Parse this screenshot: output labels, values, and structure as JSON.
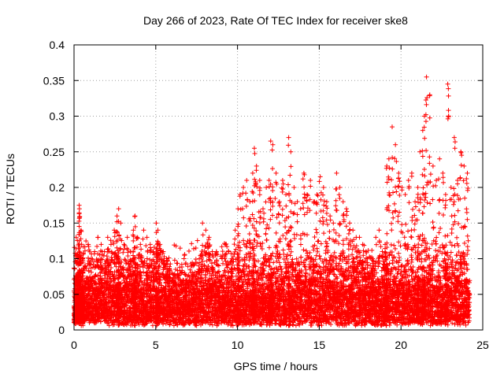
{
  "chart_data": {
    "type": "scatter",
    "title": "Day 266 of 2023, Rate Of TEC Index for receiver ske8",
    "xlabel": "GPS time / hours",
    "ylabel": "ROTI / TECUs",
    "xlim": [
      0,
      25
    ],
    "ylim": [
      0,
      0.4
    ],
    "xticks": [
      0,
      5,
      10,
      15,
      20,
      25
    ],
    "xtick_labels": [
      "0",
      "5",
      "10",
      "15",
      "20",
      "25"
    ],
    "yticks": [
      0,
      0.05,
      0.1,
      0.15,
      0.2,
      0.25,
      0.3,
      0.35,
      0.4
    ],
    "ytick_labels": [
      "0",
      "0.05",
      "0.1",
      "0.15",
      "0.2",
      "0.25",
      "0.3",
      "0.35",
      "0.4"
    ],
    "grid": true,
    "marker": "plus",
    "color": "#ff0000",
    "series": [
      {
        "x": [
          0.0,
          0.1,
          0.2,
          0.3,
          0.3,
          0.4,
          0.5,
          0.6,
          0.8,
          1.0,
          1.2,
          1.4,
          1.6,
          1.8,
          2.0,
          2.2,
          2.4,
          2.6,
          2.7,
          2.8,
          3.0,
          3.2,
          3.4,
          3.6,
          3.7,
          3.8,
          4.0,
          4.2,
          4.4,
          4.6,
          4.8,
          5.0,
          5.1,
          5.2,
          5.4,
          5.6,
          5.8,
          6.0,
          6.2,
          6.4,
          6.6,
          6.8,
          7.0,
          7.2,
          7.4,
          7.6,
          7.8,
          8.0,
          8.2,
          8.4,
          8.6,
          8.8,
          9.0,
          9.2,
          9.4,
          9.6,
          9.8,
          10.0,
          10.1,
          10.3,
          10.5,
          10.7,
          10.9,
          11.0,
          11.1,
          11.3,
          11.5,
          11.7,
          11.9,
          12.0,
          12.1,
          12.3,
          12.5,
          12.7,
          12.9,
          13.1,
          13.2,
          13.4,
          13.6,
          13.8,
          14.0,
          14.2,
          14.4,
          14.6,
          14.8,
          15.0,
          15.2,
          15.4,
          15.6,
          15.8,
          16.0,
          16.2,
          16.4,
          16.6,
          16.8,
          17.0,
          17.2,
          17.4,
          17.6,
          17.8,
          18.0,
          18.2,
          18.4,
          18.6,
          18.8,
          19.0,
          19.1,
          19.2,
          19.4,
          19.6,
          19.8,
          20.0,
          20.2,
          20.4,
          20.6,
          20.8,
          21.0,
          21.1,
          21.3,
          21.4,
          21.5,
          21.7,
          21.9,
          22.1,
          22.3,
          22.5,
          22.7,
          22.8,
          23.0,
          23.2,
          23.4,
          23.6,
          23.8,
          24.0
        ],
        "y": [
          0.02,
          0.13,
          0.08,
          0.175,
          0.17,
          0.14,
          0.1,
          0.09,
          0.12,
          0.1,
          0.11,
          0.13,
          0.12,
          0.11,
          0.13,
          0.12,
          0.14,
          0.16,
          0.17,
          0.15,
          0.12,
          0.13,
          0.11,
          0.14,
          0.16,
          0.13,
          0.12,
          0.14,
          0.13,
          0.12,
          0.11,
          0.15,
          0.14,
          0.12,
          0.11,
          0.1,
          0.08,
          0.07,
          0.06,
          0.05,
          0.07,
          0.06,
          0.07,
          0.08,
          0.07,
          0.1,
          0.15,
          0.14,
          0.13,
          0.11,
          0.08,
          0.09,
          0.1,
          0.12,
          0.11,
          0.1,
          0.14,
          0.17,
          0.19,
          0.2,
          0.21,
          0.18,
          0.22,
          0.255,
          0.23,
          0.21,
          0.17,
          0.2,
          0.21,
          0.265,
          0.26,
          0.22,
          0.18,
          0.21,
          0.19,
          0.27,
          0.25,
          0.2,
          0.18,
          0.17,
          0.22,
          0.19,
          0.21,
          0.18,
          0.19,
          0.215,
          0.2,
          0.18,
          0.16,
          0.15,
          0.22,
          0.2,
          0.18,
          0.17,
          0.15,
          0.14,
          0.13,
          0.13,
          0.12,
          0.11,
          0.08,
          0.1,
          0.13,
          0.14,
          0.11,
          0.12,
          0.23,
          0.24,
          0.285,
          0.26,
          0.22,
          0.2,
          0.19,
          0.21,
          0.22,
          0.18,
          0.2,
          0.25,
          0.28,
          0.3,
          0.355,
          0.33,
          0.23,
          0.21,
          0.24,
          0.22,
          0.19,
          0.345,
          0.2,
          0.27,
          0.21,
          0.25,
          0.23,
          0.22
        ],
        "floor_samples": [
          0.02,
          0.03,
          0.04,
          0.05,
          0.06,
          0.07,
          0.08,
          0.01,
          0.015,
          0.025,
          0.035,
          0.045,
          0.055,
          0.065,
          0.075,
          0.09,
          0.02,
          0.03,
          0.04,
          0.05
        ]
      }
    ]
  }
}
